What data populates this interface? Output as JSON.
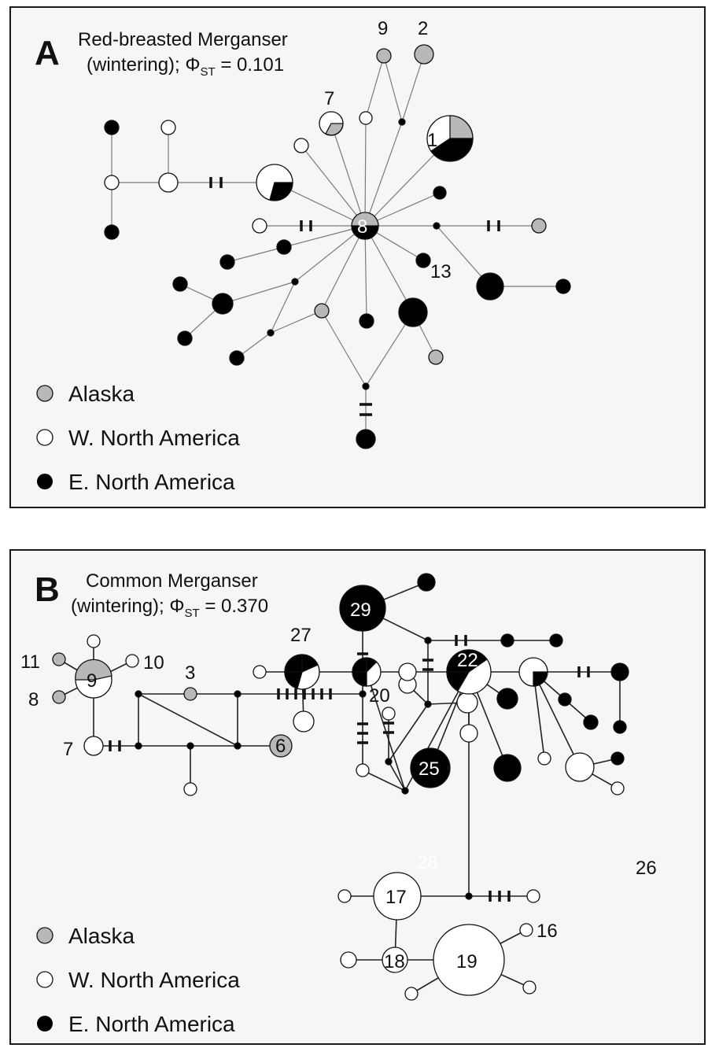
{
  "panel_a": {
    "letter": "A",
    "title_line1": "Red-breasted Merganser",
    "title_line2_pre": "(wintering); Φ",
    "title_sub": "ST",
    "title_line2_post": " = 0.101",
    "labels": {
      "n9": "9",
      "n2": "2",
      "n7": "7",
      "n1": "1",
      "n8": "8",
      "n13": "13"
    },
    "legend": [
      "Alaska",
      "W. North America",
      "E. North America"
    ]
  },
  "panel_b": {
    "letter": "B",
    "title_line1": "Common Merganser",
    "title_line2_pre": "(wintering); Φ",
    "title_sub": "ST",
    "title_line2_post": " = 0.370",
    "labels": {
      "n11": "11",
      "n10": "10",
      "n9": "9",
      "n8": "8",
      "n3": "3",
      "n7": "7",
      "n6": "6",
      "n29": "29",
      "n20": "20",
      "n25": "25",
      "n27": "27",
      "n22": "22",
      "n28": "28",
      "n26": "26",
      "n17": "17",
      "n16": "16",
      "n18": "18",
      "n19": "19"
    },
    "legend": [
      "Alaska",
      "W. North America",
      "E. North America"
    ]
  },
  "colors": {
    "alaska": "#b8b8b8",
    "west": "#ffffff",
    "east": "#000000",
    "frame": "#1a1a1a"
  }
}
